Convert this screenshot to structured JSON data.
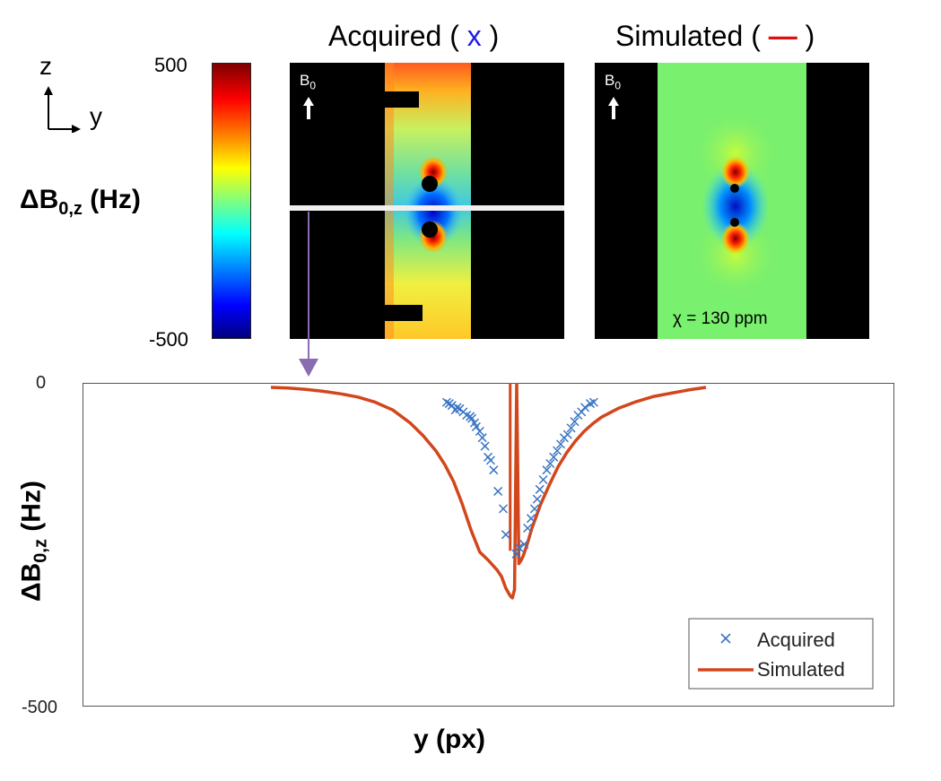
{
  "figure": {
    "axes_label_z": "z",
    "axes_label_y": "y",
    "colorbar": {
      "max_label": "500",
      "min_label": "-500",
      "label": "ΔB",
      "label_sub": "0,z",
      "label_unit": " (Hz)"
    },
    "panels": {
      "acquired": {
        "title_prefix": "Acquired ( ",
        "title_symbol": "x",
        "title_suffix": " )",
        "b0_label": "B",
        "b0_sub": "0"
      },
      "simulated": {
        "title_prefix": "Simulated ( ",
        "title_symbol": "—",
        "title_suffix": " )",
        "b0_label": "B",
        "b0_sub": "0",
        "chi_label": "χ = 130 ppm"
      }
    }
  },
  "chart_data": {
    "type": "line",
    "title": "",
    "xlabel": "y (px)",
    "ylabel": "ΔB0,z (Hz)",
    "ylabel_main": "ΔB",
    "ylabel_sub": "0,z",
    "ylabel_unit": " (Hz)",
    "ylim": [
      -500,
      0
    ],
    "xlim": [
      0,
      100
    ],
    "yticks": [
      "0",
      "-500"
    ],
    "legend_position": "bottom-right",
    "series": [
      {
        "name": "Acquired",
        "marker": "x",
        "color": "#3a75c4",
        "x": [
          40.4,
          41.0,
          41.6,
          42.4,
          42.8,
          43.4,
          44.2,
          45.0,
          45.8,
          46.2,
          46.8,
          47.2,
          48.0,
          48.6,
          49.2,
          49.9,
          50.5,
          51.2,
          52.2,
          53.4,
          54.0,
          56.4,
          57.0,
          58.2,
          59.0,
          59.8,
          60.6,
          61.2,
          61.8,
          62.6,
          63.4,
          64.2,
          65.0,
          65.8,
          66.6,
          67.4,
          68.2,
          69.0,
          69.8,
          70.6,
          71.4,
          72.2,
          73.4,
          74.2
        ],
        "y": [
          -30,
          -32,
          -35,
          -42,
          -38,
          -40,
          -45,
          -50,
          -52,
          -55,
          -62,
          -68,
          -75,
          -85,
          -98,
          -115,
          -120,
          -135,
          -168,
          -195,
          -235,
          -265,
          -255,
          -250,
          -225,
          -210,
          -195,
          -180,
          -165,
          -150,
          -135,
          -125,
          -115,
          -105,
          -95,
          -85,
          -80,
          -70,
          -60,
          -50,
          -45,
          -38,
          -32,
          -30
        ]
      },
      {
        "name": "Simulated",
        "color": "#d2461c",
        "x": [
          0.0,
          4.0,
          8.0,
          12.0,
          16.0,
          20.0,
          24.0,
          28.0,
          32.0,
          35.0,
          38.0,
          40.0,
          42.0,
          44.0,
          46.0,
          48.0,
          50.0,
          52.0,
          53.0,
          54.0,
          55.0,
          55.5,
          56.0,
          56.5,
          57.0,
          57.5,
          58.0,
          59.0,
          60.0,
          62.0,
          64.0,
          66.0,
          68.0,
          70.0,
          72.0,
          74.0,
          76.0,
          80.0,
          84.0,
          88.0,
          92.0,
          96.0,
          100.0
        ],
        "y": [
          -7,
          -8,
          -10,
          -13,
          -17,
          -22,
          -30,
          -42,
          -62,
          -82,
          -106,
          -127,
          -153,
          -188,
          -228,
          -262,
          -275,
          -290,
          -300,
          -318,
          -330,
          -333,
          -320,
          -0.5,
          -280,
          -275,
          -268,
          -248,
          -225,
          -188,
          -158,
          -130,
          -108,
          -90,
          -75,
          -63,
          -53,
          -39,
          -29,
          -21,
          -16,
          -11,
          -7
        ]
      }
    ],
    "acquired_glitch": {
      "x": [
        55.0,
        55.0
      ],
      "y": [
        -260,
        0
      ]
    }
  }
}
